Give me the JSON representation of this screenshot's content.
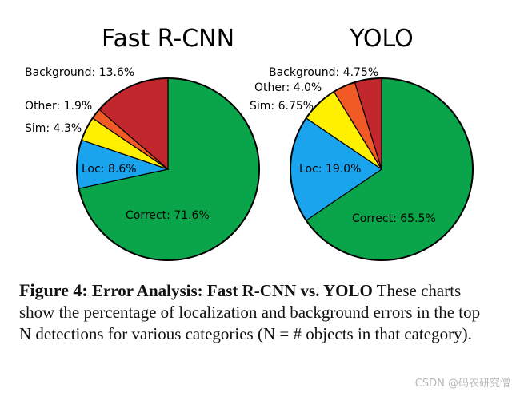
{
  "chart_data": [
    {
      "type": "pie",
      "title": "Fast R-CNN",
      "slices": [
        {
          "name": "Correct",
          "value": 71.6,
          "label": "Correct: 71.6%",
          "color": "#0aa54a"
        },
        {
          "name": "Loc",
          "value": 8.6,
          "label": "Loc: 8.6%",
          "color": "#1ba4ee"
        },
        {
          "name": "Sim",
          "value": 4.3,
          "label": "Sim: 4.3%",
          "color": "#fff000"
        },
        {
          "name": "Other",
          "value": 1.9,
          "label": "Other: 1.9%",
          "color": "#f15a24"
        },
        {
          "name": "Background",
          "value": 13.6,
          "label": "Background: 13.6%",
          "color": "#c1272d"
        }
      ]
    },
    {
      "type": "pie",
      "title": "YOLO",
      "slices": [
        {
          "name": "Correct",
          "value": 65.5,
          "label": "Correct: 65.5%",
          "color": "#0aa54a"
        },
        {
          "name": "Loc",
          "value": 19.0,
          "label": "Loc: 19.0%",
          "color": "#1ba4ee"
        },
        {
          "name": "Sim",
          "value": 6.75,
          "label": "Sim: 6.75%",
          "color": "#fff000"
        },
        {
          "name": "Other",
          "value": 4.0,
          "label": "Other: 4.0%",
          "color": "#f15a24"
        },
        {
          "name": "Background",
          "value": 4.75,
          "label": "Background: 4.75%",
          "color": "#c1272d"
        }
      ]
    }
  ],
  "caption": {
    "figure_label": "Figure 4:",
    "heading": "Error Analysis: Fast R-CNN vs. YOLO",
    "text": "These charts show the percentage of localization and background errors in the top N detections for various categories (N = # objects in that category)."
  },
  "watermark": "CSDN @码农研究僧"
}
